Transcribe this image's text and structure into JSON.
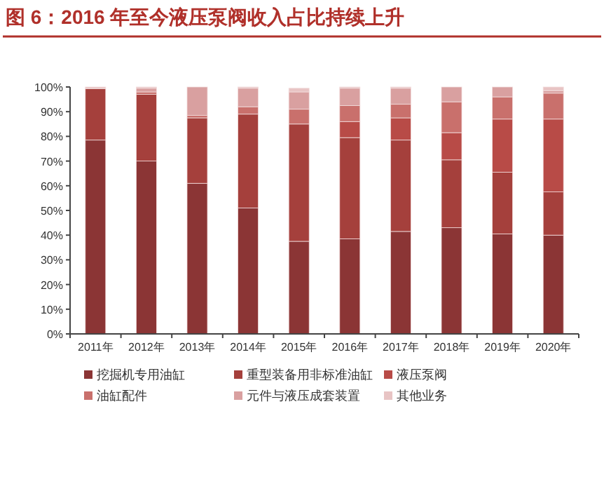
{
  "chart_data": {
    "type": "bar",
    "stacked": true,
    "title": "图 6：2016 年至今液压泵阀收入占比持续上升",
    "categories": [
      "2011年",
      "2012年",
      "2013年",
      "2014年",
      "2015年",
      "2016年",
      "2017年",
      "2018年",
      "2019年",
      "2020年"
    ],
    "series": [
      {
        "name": "挖掘机专用油缸",
        "color": "#8b3535",
        "values": [
          78.5,
          70,
          61,
          51,
          37.5,
          38.5,
          41.5,
          43,
          40.5,
          40
        ]
      },
      {
        "name": "重型装备用非标准油缸",
        "color": "#a5403c",
        "values": [
          20.8,
          27,
          26.5,
          38,
          47.5,
          41,
          37,
          27.5,
          25,
          17.5
        ]
      },
      {
        "name": "液压泵阀",
        "color": "#b84b47",
        "values": [
          0,
          0,
          0,
          0,
          null,
          6.5,
          9,
          11,
          21.5,
          29.5
        ]
      },
      {
        "name": "油缸配件",
        "color": "#c9706c",
        "values": [
          0,
          1,
          1,
          3,
          6,
          6.5,
          5.5,
          12.5,
          9,
          10.5
        ]
      },
      {
        "name": "元件与液压成套装置",
        "color": "#d9a0a0",
        "values": [
          0,
          1.5,
          11.5,
          7.5,
          7,
          7,
          6.5,
          6,
          4,
          1
        ]
      },
      {
        "name": "其他业务",
        "color": "#e8c4c4",
        "values": [
          0.7,
          0.5,
          0,
          0.5,
          1.5,
          0.5,
          0.5,
          0,
          0,
          1.5
        ]
      }
    ],
    "ylim": [
      0,
      100
    ],
    "yticks": [
      {
        "value": 0,
        "label": "0%"
      },
      {
        "value": 10,
        "label": "10%"
      },
      {
        "value": 20,
        "label": "20%"
      },
      {
        "value": 30,
        "label": "30%"
      },
      {
        "value": 40,
        "label": "40%"
      },
      {
        "value": 50,
        "label": "50%"
      },
      {
        "value": 60,
        "label": "60%"
      },
      {
        "value": 70,
        "label": "70%"
      },
      {
        "value": 80,
        "label": "80%"
      },
      {
        "value": 90,
        "label": "90%"
      },
      {
        "value": 100,
        "label": "100%"
      }
    ],
    "grid": false,
    "legend": "bottom"
  }
}
